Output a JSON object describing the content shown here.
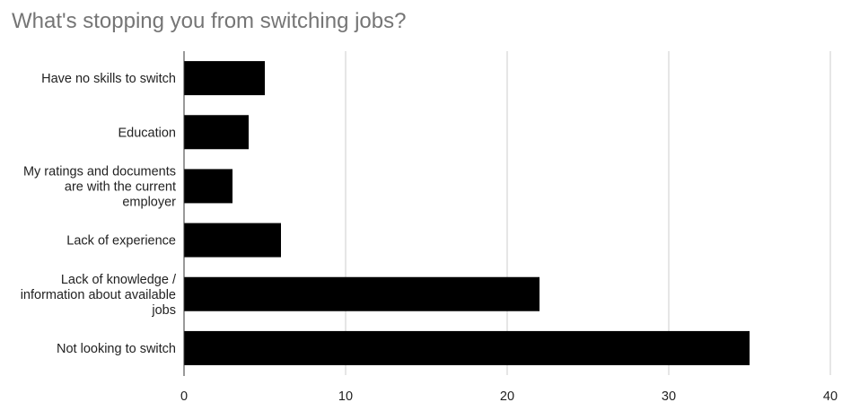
{
  "chart_data": {
    "type": "bar",
    "orientation": "horizontal",
    "title": "What's stopping you from switching jobs?",
    "categories": [
      [
        "Have no skills to switch"
      ],
      [
        "Education"
      ],
      [
        "My ratings and documents",
        "are with the current",
        "employer"
      ],
      [
        "Lack of experience"
      ],
      [
        "Lack of knowledge /",
        "information about available",
        "jobs"
      ],
      [
        "Not looking to switch"
      ]
    ],
    "values": [
      5,
      4,
      3,
      6,
      22,
      35
    ],
    "xlim": [
      0,
      40
    ],
    "xticks": [
      0,
      10,
      20,
      30,
      40
    ],
    "grid": true,
    "bar_color": "#000000"
  }
}
